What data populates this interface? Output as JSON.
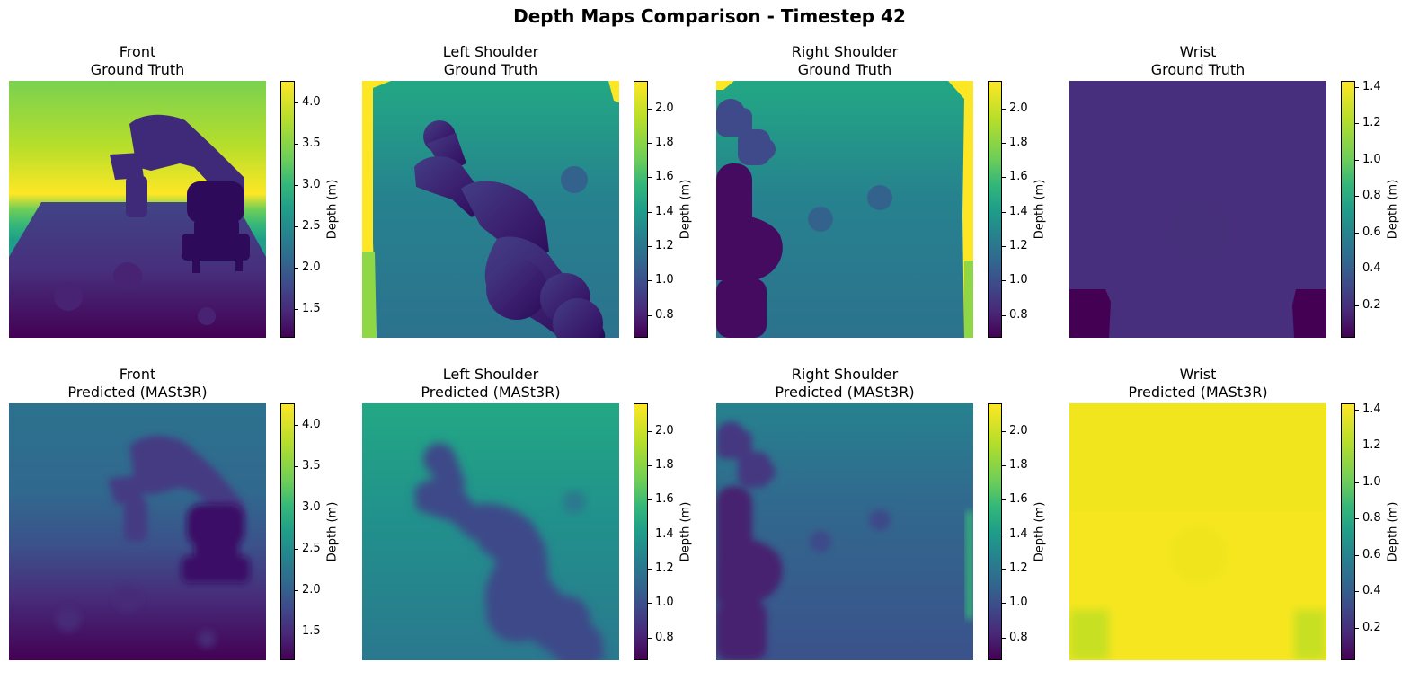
{
  "figure": {
    "title": "Depth Maps Comparison - Timestep 42"
  },
  "colorbar_label": "Depth (m)",
  "colormap": [
    "#440154",
    "#482878",
    "#3e4989",
    "#31688e",
    "#26828e",
    "#1f9e89",
    "#35b779",
    "#6ece58",
    "#b5de2b",
    "#fde725"
  ],
  "panels": [
    {
      "view": "Front",
      "kind": "Ground Truth",
      "vmin": 1.02,
      "vmax": 4.15,
      "ticks": [
        "1.5",
        "2.0",
        "2.5",
        "3.0",
        "3.5",
        "4.0"
      ]
    },
    {
      "view": "Left Shoulder",
      "kind": "Ground Truth",
      "vmin": 0.66,
      "vmax": 2.16,
      "ticks": [
        "0.8",
        "1.0",
        "1.2",
        "1.4",
        "1.6",
        "1.8",
        "2.0"
      ]
    },
    {
      "view": "Right Shoulder",
      "kind": "Ground Truth",
      "vmin": 0.66,
      "vmax": 2.16,
      "ticks": [
        "0.8",
        "1.0",
        "1.2",
        "1.4",
        "1.6",
        "1.8",
        "2.0"
      ]
    },
    {
      "view": "Wrist",
      "kind": "Ground Truth",
      "vmin": 0.08,
      "vmax": 1.49,
      "ticks": [
        "0.2",
        "0.4",
        "0.6",
        "0.8",
        "1.0",
        "1.2",
        "1.4"
      ]
    },
    {
      "view": "Front",
      "kind": "Predicted (MASt3R)",
      "vmin": 1.02,
      "vmax": 4.15,
      "ticks": [
        "1.5",
        "2.0",
        "2.5",
        "3.0",
        "3.5",
        "4.0"
      ]
    },
    {
      "view": "Left Shoulder",
      "kind": "Predicted (MASt3R)",
      "vmin": 0.66,
      "vmax": 2.16,
      "ticks": [
        "0.8",
        "1.0",
        "1.2",
        "1.4",
        "1.6",
        "1.8",
        "2.0"
      ]
    },
    {
      "view": "Right Shoulder",
      "kind": "Predicted (MASt3R)",
      "vmin": 0.66,
      "vmax": 2.16,
      "ticks": [
        "0.8",
        "1.0",
        "1.2",
        "1.4",
        "1.6",
        "1.8",
        "2.0"
      ]
    },
    {
      "view": "Wrist",
      "kind": "Predicted (MASt3R)",
      "vmin": 0.08,
      "vmax": 1.49,
      "ticks": [
        "0.2",
        "0.4",
        "0.6",
        "0.8",
        "1.0",
        "1.2",
        "1.4"
      ]
    }
  ],
  "chart_data": [
    {
      "type": "heatmap",
      "title": "Front\nGround Truth",
      "colorbar_label": "Depth (m)",
      "colorbar_range": [
        1.02,
        4.15
      ],
      "colorbar_ticks": [
        1.5,
        2.0,
        2.5,
        3.0,
        3.5,
        4.0
      ]
    },
    {
      "type": "heatmap",
      "title": "Left Shoulder\nGround Truth",
      "colorbar_label": "Depth (m)",
      "colorbar_range": [
        0.66,
        2.16
      ],
      "colorbar_ticks": [
        0.8,
        1.0,
        1.2,
        1.4,
        1.6,
        1.8,
        2.0
      ]
    },
    {
      "type": "heatmap",
      "title": "Right Shoulder\nGround Truth",
      "colorbar_label": "Depth (m)",
      "colorbar_range": [
        0.66,
        2.16
      ],
      "colorbar_ticks": [
        0.8,
        1.0,
        1.2,
        1.4,
        1.6,
        1.8,
        2.0
      ]
    },
    {
      "type": "heatmap",
      "title": "Wrist\nGround Truth",
      "colorbar_label": "Depth (m)",
      "colorbar_range": [
        0.08,
        1.49
      ],
      "colorbar_ticks": [
        0.2,
        0.4,
        0.6,
        0.8,
        1.0,
        1.2,
        1.4
      ]
    },
    {
      "type": "heatmap",
      "title": "Front\nPredicted (MASt3R)",
      "colorbar_label": "Depth (m)",
      "colorbar_range": [
        1.02,
        4.15
      ],
      "colorbar_ticks": [
        1.5,
        2.0,
        2.5,
        3.0,
        3.5,
        4.0
      ]
    },
    {
      "type": "heatmap",
      "title": "Left Shoulder\nPredicted (MASt3R)",
      "colorbar_label": "Depth (m)",
      "colorbar_range": [
        0.66,
        2.16
      ],
      "colorbar_ticks": [
        0.8,
        1.0,
        1.2,
        1.4,
        1.6,
        1.8,
        2.0
      ]
    },
    {
      "type": "heatmap",
      "title": "Right Shoulder\nPredicted (MASt3R)",
      "colorbar_label": "Depth (m)",
      "colorbar_range": [
        0.66,
        2.16
      ],
      "colorbar_ticks": [
        0.8,
        1.0,
        1.2,
        1.4,
        1.6,
        1.8,
        2.0
      ]
    },
    {
      "type": "heatmap",
      "title": "Wrist\nPredicted (MASt3R)",
      "colorbar_label": "Depth (m)",
      "colorbar_range": [
        0.08,
        1.49
      ],
      "colorbar_ticks": [
        0.2,
        0.4,
        0.6,
        0.8,
        1.0,
        1.2,
        1.4
      ]
    }
  ]
}
